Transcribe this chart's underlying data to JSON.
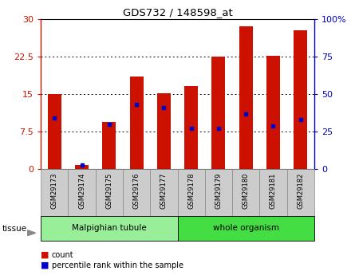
{
  "title": "GDS732 / 148598_at",
  "samples": [
    "GSM29173",
    "GSM29174",
    "GSM29175",
    "GSM29176",
    "GSM29177",
    "GSM29178",
    "GSM29179",
    "GSM29180",
    "GSM29181",
    "GSM29182"
  ],
  "counts": [
    15.0,
    0.9,
    9.5,
    18.5,
    15.2,
    16.7,
    22.5,
    28.6,
    22.7,
    27.8
  ],
  "percentile_ranks": [
    34,
    3,
    30,
    43,
    41,
    27,
    27,
    37,
    29,
    33
  ],
  "left_ylim": [
    0,
    30
  ],
  "right_ylim": [
    0,
    100
  ],
  "left_yticks": [
    0,
    7.5,
    15,
    22.5,
    30
  ],
  "right_yticks": [
    0,
    25,
    50,
    75,
    100
  ],
  "bar_color": "#cc1100",
  "dot_color": "#0000cc",
  "tissue_groups": [
    {
      "label": "Malpighian tubule",
      "n_samples": 5,
      "color": "#99ee99"
    },
    {
      "label": "whole organism",
      "n_samples": 5,
      "color": "#44dd44"
    }
  ],
  "legend_count_label": "count",
  "legend_pct_label": "percentile rank within the sample",
  "tissue_label": "tissue",
  "bg_color": "#ffffff",
  "bar_width": 0.5,
  "left_axis_color": "#cc1100",
  "right_axis_color": "#0000bb",
  "label_bg_color": "#cccccc",
  "label_edge_color": "#888888"
}
